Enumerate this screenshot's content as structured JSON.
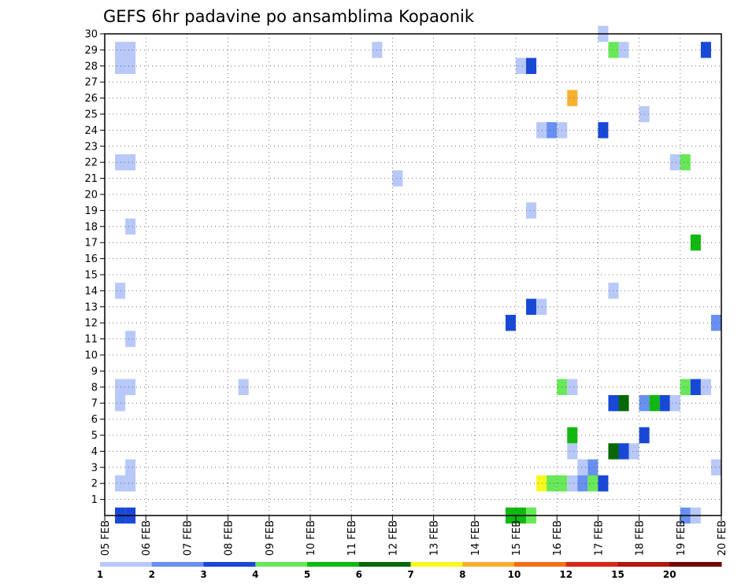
{
  "chart_data": {
    "type": "heatmap",
    "title": "GEFS 6hr padavine po ansamblima Kopaonik",
    "y_ticks": [
      "1",
      "2",
      "3",
      "4",
      "5",
      "6",
      "7",
      "8",
      "9",
      "10",
      "11",
      "12",
      "13",
      "14",
      "15",
      "16",
      "17",
      "18",
      "19",
      "20",
      "21",
      "22",
      "23",
      "24",
      "25",
      "26",
      "27",
      "28",
      "29",
      "30"
    ],
    "y_range": [
      0,
      30
    ],
    "x_ticks": [
      "05 FEB",
      "06 FEB",
      "07 FEB",
      "08 FEB",
      "09 FEB",
      "10 FEB",
      "11 FEB",
      "12 FEB",
      "13 FEB",
      "14 FEB",
      "15 FEB",
      "16 FEB",
      "17 FEB",
      "18 FEB",
      "19 FEB",
      "20 FEB"
    ],
    "x_range_days": [
      0,
      15
    ],
    "grid": true,
    "legend": {
      "placement": "bottom",
      "colors": [
        "#b8c8f8",
        "#6890f0",
        "#1848d8",
        "#68e858",
        "#10b810",
        "#086808",
        "#f8f820",
        "#f8b030",
        "#f07018",
        "#d82818",
        "#b01810",
        "#700808"
      ],
      "labels": [
        "1",
        "2",
        "3",
        "4",
        "5",
        "6",
        "7",
        "8",
        "10",
        "12",
        "15",
        "20"
      ]
    },
    "cells": [
      {
        "t": 0.25,
        "m": 0,
        "c": 3
      },
      {
        "t": 0.5,
        "m": 0,
        "c": 3
      },
      {
        "t": 0.25,
        "m": 2,
        "c": 1
      },
      {
        "t": 0.5,
        "m": 2,
        "c": 1
      },
      {
        "t": 0.5,
        "m": 3,
        "c": 1
      },
      {
        "t": 0.25,
        "m": 7,
        "c": 1
      },
      {
        "t": 0.25,
        "m": 8,
        "c": 1
      },
      {
        "t": 0.5,
        "m": 8,
        "c": 1
      },
      {
        "t": 0.5,
        "m": 11,
        "c": 1
      },
      {
        "t": 0.25,
        "m": 14,
        "c": 1
      },
      {
        "t": 0.5,
        "m": 18,
        "c": 1
      },
      {
        "t": 0.25,
        "m": 22,
        "c": 1
      },
      {
        "t": 0.5,
        "m": 22,
        "c": 1
      },
      {
        "t": 0.25,
        "m": 28,
        "c": 1
      },
      {
        "t": 0.5,
        "m": 28,
        "c": 1
      },
      {
        "t": 0.25,
        "m": 29,
        "c": 1
      },
      {
        "t": 0.5,
        "m": 29,
        "c": 1
      },
      {
        "t": 3.25,
        "m": 8,
        "c": 1
      },
      {
        "t": 6.5,
        "m": 29,
        "c": 1
      },
      {
        "t": 7.0,
        "m": 21,
        "c": 1
      },
      {
        "t": 9.75,
        "m": 0,
        "c": 5
      },
      {
        "t": 10.0,
        "m": 0,
        "c": 5
      },
      {
        "t": 10.25,
        "m": 0,
        "c": 4
      },
      {
        "t": 9.75,
        "m": 12,
        "c": 3
      },
      {
        "t": 10.25,
        "m": 13,
        "c": 3
      },
      {
        "t": 10.5,
        "m": 13,
        "c": 1
      },
      {
        "t": 10.0,
        "m": 28,
        "c": 1
      },
      {
        "t": 10.25,
        "m": 28,
        "c": 3
      },
      {
        "t": 10.25,
        "m": 19,
        "c": 1
      },
      {
        "t": 10.5,
        "m": 2,
        "c": 7
      },
      {
        "t": 10.75,
        "m": 2,
        "c": 4
      },
      {
        "t": 11.0,
        "m": 2,
        "c": 4
      },
      {
        "t": 10.5,
        "m": 24,
        "c": 1
      },
      {
        "t": 10.75,
        "m": 24,
        "c": 2
      },
      {
        "t": 11.0,
        "m": 24,
        "c": 1
      },
      {
        "t": 11.0,
        "m": 8,
        "c": 4
      },
      {
        "t": 11.25,
        "m": 8,
        "c": 1
      },
      {
        "t": 11.25,
        "m": 2,
        "c": 1
      },
      {
        "t": 11.25,
        "m": 4,
        "c": 1
      },
      {
        "t": 11.25,
        "m": 5,
        "c": 5
      },
      {
        "t": 11.25,
        "m": 26,
        "c": 8
      },
      {
        "t": 11.5,
        "m": 2,
        "c": 2
      },
      {
        "t": 11.5,
        "m": 3,
        "c": 1
      },
      {
        "t": 11.75,
        "m": 2,
        "c": 4
      },
      {
        "t": 11.75,
        "m": 3,
        "c": 2
      },
      {
        "t": 12.0,
        "m": 2,
        "c": 3
      },
      {
        "t": 12.0,
        "m": 24,
        "c": 3
      },
      {
        "t": 12.0,
        "m": 30,
        "c": 1
      },
      {
        "t": 12.25,
        "m": 4,
        "c": 6
      },
      {
        "t": 12.25,
        "m": 7,
        "c": 3
      },
      {
        "t": 12.25,
        "m": 14,
        "c": 1
      },
      {
        "t": 12.25,
        "m": 29,
        "c": 4
      },
      {
        "t": 12.5,
        "m": 4,
        "c": 3
      },
      {
        "t": 12.5,
        "m": 7,
        "c": 6
      },
      {
        "t": 12.5,
        "m": 29,
        "c": 1
      },
      {
        "t": 12.75,
        "m": 4,
        "c": 1
      },
      {
        "t": 13.0,
        "m": 5,
        "c": 3
      },
      {
        "t": 13.0,
        "m": 7,
        "c": 2
      },
      {
        "t": 13.0,
        "m": 25,
        "c": 1
      },
      {
        "t": 13.25,
        "m": 7,
        "c": 5
      },
      {
        "t": 13.5,
        "m": 7,
        "c": 3
      },
      {
        "t": 13.75,
        "m": 7,
        "c": 1
      },
      {
        "t": 13.75,
        "m": 22,
        "c": 1
      },
      {
        "t": 14.0,
        "m": 22,
        "c": 4
      },
      {
        "t": 14.0,
        "m": 0,
        "c": 2
      },
      {
        "t": 14.25,
        "m": 0,
        "c": 1
      },
      {
        "t": 14.0,
        "m": 8,
        "c": 4
      },
      {
        "t": 14.25,
        "m": 8,
        "c": 3
      },
      {
        "t": 14.5,
        "m": 8,
        "c": 1
      },
      {
        "t": 14.25,
        "m": 17,
        "c": 5
      },
      {
        "t": 14.5,
        "m": 29,
        "c": 3
      },
      {
        "t": 14.75,
        "m": 3,
        "c": 1
      },
      {
        "t": 14.75,
        "m": 12,
        "c": 2
      }
    ]
  }
}
